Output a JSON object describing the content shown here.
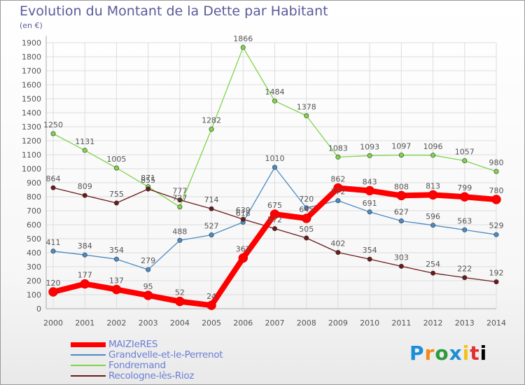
{
  "chart_data": {
    "type": "line",
    "title": "Evolution du Montant de la Dette par Habitant",
    "subtitle": "(en €)",
    "xlabel": "",
    "ylabel": "",
    "ylim": [
      0,
      1900
    ],
    "yticks": [
      0,
      100,
      200,
      300,
      400,
      500,
      600,
      700,
      800,
      900,
      1000,
      1100,
      1200,
      1300,
      1400,
      1500,
      1600,
      1700,
      1800,
      1900
    ],
    "grid": true,
    "legend_position": "bottom-left",
    "categories": [
      "2000",
      "2001",
      "2002",
      "2003",
      "2004",
      "2005",
      "2006",
      "2007",
      "2008",
      "2009",
      "2010",
      "2011",
      "2012",
      "2013",
      "2014"
    ],
    "series": [
      {
        "name": "MAIZIeRES",
        "color": "#ff0000",
        "values": [
          120,
          177,
          137,
          95,
          52,
          24,
          362,
          675,
          645,
          862,
          843,
          808,
          813,
          799,
          780
        ],
        "labels": [
          "120",
          "177",
          "137",
          "95",
          "52",
          "24",
          "362",
          "675",
          "645",
          "862",
          "843",
          "808",
          "813",
          "799",
          "780"
        ]
      },
      {
        "name": "Grandvelle-et-le-Perrenot",
        "color": "#4a8bc4",
        "values": [
          411,
          384,
          354,
          279,
          488,
          527,
          618,
          1010,
          720,
          772,
          691,
          627,
          596,
          563,
          529
        ],
        "labels": [
          "411",
          "384",
          "354",
          "279",
          "488",
          "527",
          "618",
          "1010",
          "720",
          "772",
          "691",
          "627",
          "596",
          "563",
          "529"
        ]
      },
      {
        "name": "Fondremand",
        "color": "#7fd44a",
        "values": [
          1250,
          1131,
          1005,
          871,
          727,
          1282,
          1866,
          1484,
          1378,
          1083,
          1093,
          1097,
          1096,
          1057,
          980
        ],
        "labels": [
          "1250",
          "1131",
          "1005",
          "871",
          "727",
          "1282",
          "1866",
          "1484",
          "1378",
          "1083",
          "1093",
          "1097",
          "1096",
          "1057",
          "980"
        ]
      },
      {
        "name": "Recologne-lès-Rioz",
        "color": "#6b1a1a",
        "values": [
          864,
          809,
          755,
          855,
          777,
          714,
          639,
          572,
          505,
          402,
          354,
          303,
          254,
          222,
          192
        ],
        "labels": [
          "864",
          "809",
          "755",
          "855",
          "777",
          "714",
          "639",
          "572",
          "505",
          "402",
          "354",
          "303",
          "254",
          "222",
          "192"
        ]
      }
    ]
  },
  "logo": {
    "letters": [
      "P",
      "r",
      "o",
      "x",
      "i",
      "t",
      "i"
    ],
    "text": "Proxiti"
  }
}
